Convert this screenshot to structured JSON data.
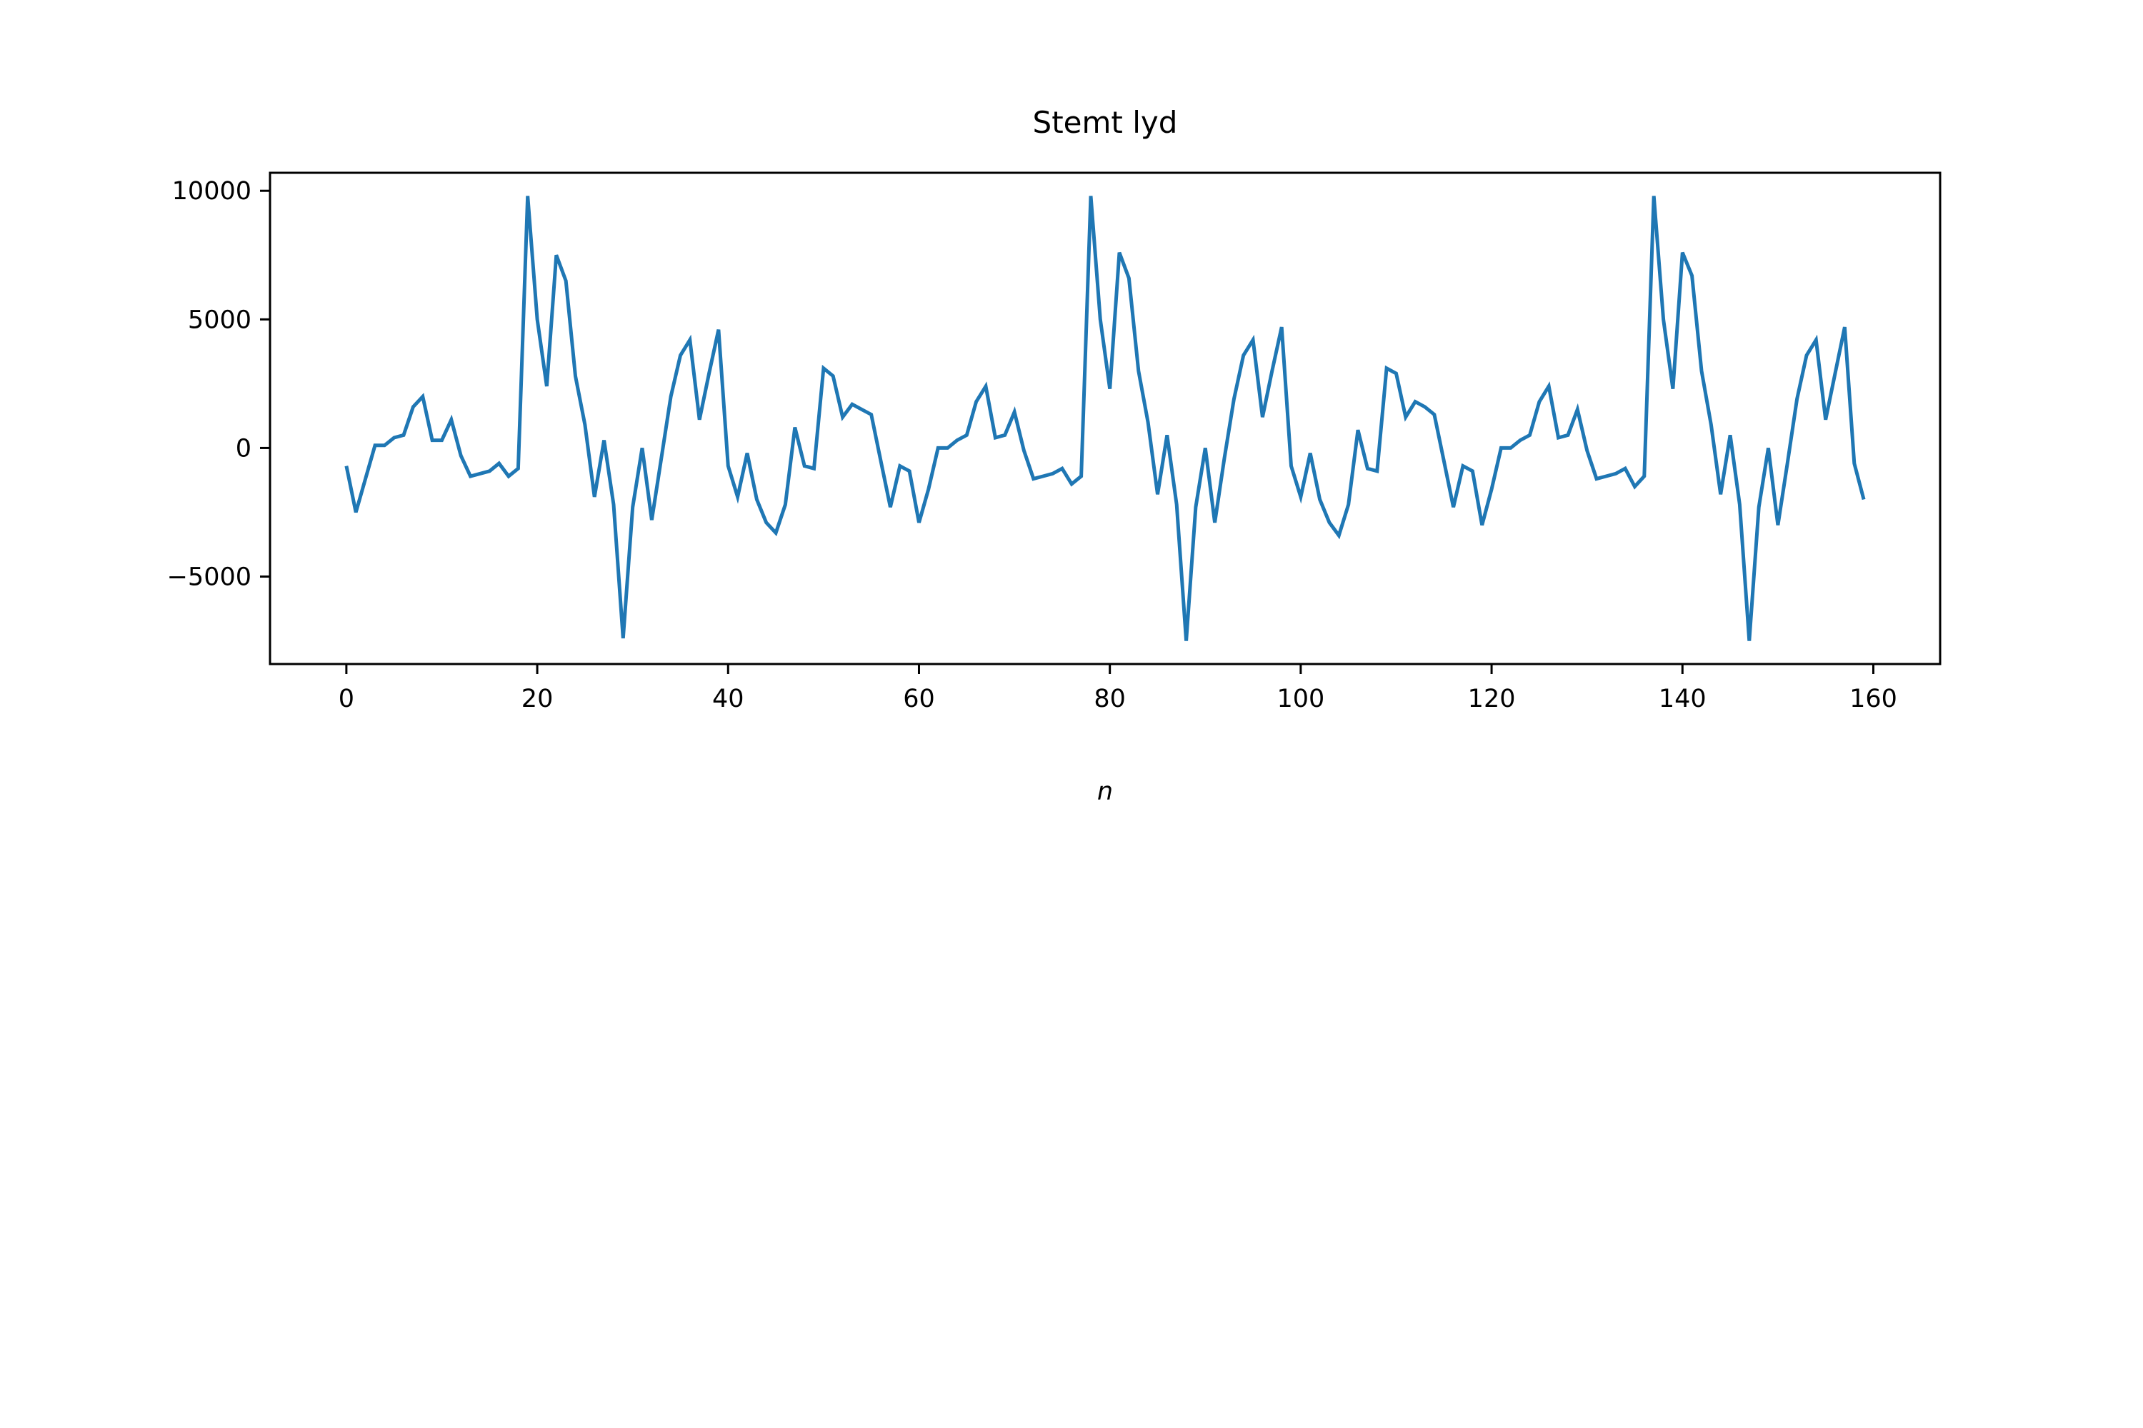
{
  "chart_data": {
    "type": "line",
    "title": "Stemt lyd",
    "xlabel": "n",
    "ylabel": "",
    "xlim": [
      -8,
      167
    ],
    "ylim": [
      -8400,
      10700
    ],
    "xticks": [
      0,
      20,
      40,
      60,
      80,
      100,
      120,
      140,
      160
    ],
    "yticks": [
      -5000,
      0,
      5000,
      10000
    ],
    "xtick_labels": [
      "0",
      "20",
      "40",
      "60",
      "80",
      "100",
      "120",
      "140",
      "160"
    ],
    "ytick_labels": [
      "−5000",
      "0",
      "5000",
      "10000"
    ],
    "grid": false,
    "legend": "none",
    "series": [
      {
        "color": "#1f77b4",
        "x": [
          0,
          1,
          2,
          3,
          4,
          5,
          6,
          7,
          8,
          9,
          10,
          11,
          12,
          13,
          14,
          15,
          16,
          17,
          18,
          19,
          20,
          21,
          22,
          23,
          24,
          25,
          26,
          27,
          28,
          29,
          30,
          31,
          32,
          33,
          34,
          35,
          36,
          37,
          38,
          39,
          40,
          41,
          42,
          43,
          44,
          45,
          46,
          47,
          48,
          49,
          50,
          51,
          52,
          53,
          54,
          55,
          56,
          57,
          58,
          59,
          60,
          61,
          62,
          63,
          64,
          65,
          66,
          67,
          68,
          69,
          70,
          71,
          72,
          73,
          74,
          75,
          76,
          77,
          78,
          79,
          80,
          81,
          82,
          83,
          84,
          85,
          86,
          87,
          88,
          89,
          90,
          91,
          92,
          93,
          94,
          95,
          96,
          97,
          98,
          99,
          100,
          101,
          102,
          103,
          104,
          105,
          106,
          107,
          108,
          109,
          110,
          111,
          112,
          113,
          114,
          115,
          116,
          117,
          118,
          119,
          120,
          121,
          122,
          123,
          124,
          125,
          126,
          127,
          128,
          129,
          130,
          131,
          132,
          133,
          134,
          135,
          136,
          137,
          138,
          139,
          140,
          141,
          142,
          143,
          144,
          145,
          146,
          147,
          148,
          149,
          150,
          151,
          152,
          153,
          154,
          155,
          156,
          157,
          158,
          159
        ],
        "y": [
          -700,
          -2500,
          -1200,
          100,
          100,
          400,
          500,
          1600,
          2000,
          300,
          300,
          1100,
          -300,
          -1100,
          -1000,
          -900,
          -600,
          -1100,
          -800,
          9800,
          5000,
          2400,
          7500,
          6500,
          2800,
          900,
          -1900,
          300,
          -2200,
          -7400,
          -2300,
          0,
          -2800,
          -400,
          2000,
          3600,
          4200,
          1100,
          2900,
          4600,
          -700,
          -1900,
          -200,
          -2000,
          -2900,
          -3300,
          -2200,
          800,
          -700,
          -800,
          3100,
          2800,
          1200,
          1700,
          1500,
          1300,
          -500,
          -2300,
          -700,
          -900,
          -2900,
          -1600,
          0,
          0,
          300,
          500,
          1800,
          2400,
          400,
          500,
          1400,
          -100,
          -1200,
          -1100,
          -1000,
          -800,
          -1400,
          -1100,
          9800,
          5000,
          2300,
          7600,
          6600,
          3000,
          1000,
          -1800,
          500,
          -2200,
          -7500,
          -2300,
          0,
          -2900,
          -400,
          1900,
          3600,
          4200,
          1200,
          3000,
          4700,
          -700,
          -1900,
          -200,
          -2000,
          -2900,
          -3400,
          -2200,
          700,
          -800,
          -900,
          3100,
          2900,
          1200,
          1800,
          1600,
          1300,
          -500,
          -2300,
          -700,
          -900,
          -3000,
          -1600,
          0,
          0,
          300,
          500,
          1800,
          2400,
          400,
          500,
          1500,
          -100,
          -1200,
          -1100,
          -1000,
          -800,
          -1500,
          -1100,
          9800,
          5000,
          2300,
          7600,
          6700,
          3000,
          900,
          -1800,
          500,
          -2200,
          -7500,
          -2300,
          0,
          -3000,
          -600,
          1900,
          3600,
          4200,
          1100,
          2900,
          4700,
          -600,
          -2000
        ]
      }
    ]
  }
}
